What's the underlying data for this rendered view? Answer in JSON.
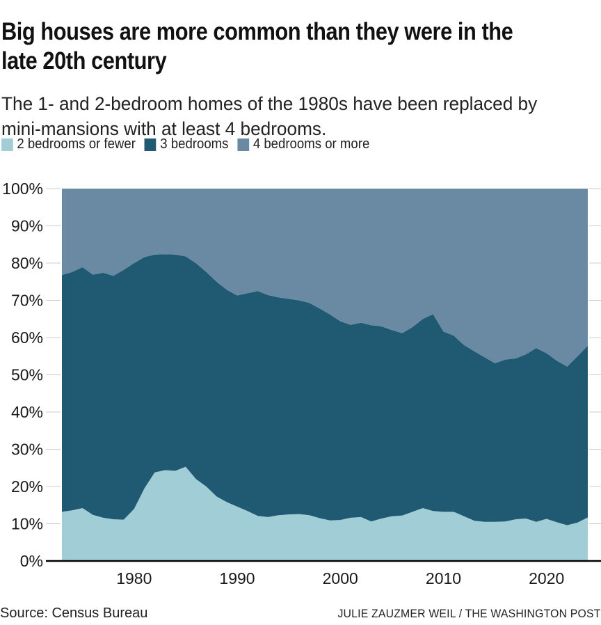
{
  "header": {
    "title_line1": "Big houses are more common than they were in the",
    "title_line2": "late 20th century",
    "subtitle_line1": "The 1- and 2-bedroom homes of the 1980s have been replaced by",
    "subtitle_line2": "mini-mansions with at least 4 bedrooms."
  },
  "footer": {
    "source": "Source: Census Bureau",
    "credit": "JULIE ZAUZMER WEIL / THE WASHINGTON POST"
  },
  "colors": {
    "axis_line": "#000000",
    "tick": "#cccccc",
    "label_text": "#1a1a1a"
  },
  "chart_data": {
    "type": "area",
    "stacked": true,
    "unit": "percent of homes",
    "title": "Big houses are more common than they were in the late 20th century",
    "xlabel": "",
    "ylabel": "",
    "ylim": [
      0,
      100
    ],
    "grid": false,
    "legend_position": "top",
    "y_ticks": [
      "0%",
      "10%",
      "20%",
      "30%",
      "40%",
      "50%",
      "60%",
      "70%",
      "80%",
      "90%",
      "100%"
    ],
    "x_ticks": [
      "1980",
      "1990",
      "2000",
      "2010",
      "2020"
    ],
    "x": [
      1973,
      1974,
      1975,
      1976,
      1977,
      1978,
      1979,
      1980,
      1981,
      1982,
      1983,
      1984,
      1985,
      1986,
      1987,
      1988,
      1989,
      1990,
      1991,
      1992,
      1993,
      1994,
      1995,
      1996,
      1997,
      1998,
      1999,
      2000,
      2001,
      2002,
      2003,
      2004,
      2005,
      2006,
      2007,
      2008,
      2009,
      2010,
      2011,
      2012,
      2013,
      2014,
      2015,
      2016,
      2017,
      2018,
      2019,
      2020,
      2021,
      2022,
      2023,
      2024
    ],
    "series": [
      {
        "name": "2 bedrooms or fewer",
        "color": "#a1ced6",
        "values": [
          13.2,
          13.6,
          14.2,
          12.4,
          11.6,
          11.2,
          11.1,
          14.0,
          19.5,
          23.8,
          24.4,
          24.2,
          25.3,
          22.0,
          20.0,
          17.3,
          15.8,
          14.6,
          13.4,
          12.1,
          11.8,
          12.3,
          12.5,
          12.6,
          12.3,
          11.5,
          10.9,
          11.0,
          11.6,
          11.8,
          10.6,
          11.4,
          12.0,
          12.2,
          13.2,
          14.2,
          13.4,
          13.2,
          13.2,
          12.0,
          10.8,
          10.5,
          10.5,
          10.6,
          11.2,
          11.4,
          10.5,
          11.3,
          10.4,
          9.6,
          10.3,
          11.7
        ]
      },
      {
        "name": "3 bedrooms",
        "color": "#1f5a72",
        "values": [
          63.6,
          64.0,
          64.7,
          64.5,
          65.8,
          65.4,
          67.1,
          66.0,
          62.1,
          58.5,
          58.0,
          58.1,
          56.5,
          58.0,
          57.6,
          57.7,
          57.0,
          56.7,
          58.5,
          60.4,
          59.6,
          58.5,
          57.9,
          57.4,
          57.0,
          56.3,
          55.3,
          53.4,
          51.8,
          52.2,
          52.7,
          51.6,
          50.0,
          49.0,
          49.6,
          50.8,
          52.9,
          48.4,
          47.3,
          46.0,
          45.5,
          44.2,
          42.6,
          43.5,
          43.2,
          44.1,
          46.7,
          44.5,
          43.4,
          42.6,
          44.7,
          46.1
        ]
      },
      {
        "name": "4 bedrooms or more",
        "color": "#6a8aa4",
        "values": [
          23.2,
          22.4,
          21.1,
          23.1,
          22.6,
          23.4,
          21.8,
          20.0,
          18.4,
          17.7,
          17.6,
          17.7,
          18.2,
          20.0,
          22.4,
          25.0,
          27.2,
          28.7,
          28.1,
          27.5,
          28.6,
          29.2,
          29.6,
          30.0,
          30.7,
          32.2,
          33.8,
          35.6,
          36.6,
          36.0,
          36.7,
          37.0,
          38.0,
          38.8,
          37.2,
          35.0,
          33.7,
          38.4,
          39.5,
          42.0,
          43.7,
          45.3,
          46.9,
          45.9,
          45.6,
          44.5,
          42.8,
          44.2,
          46.2,
          47.8,
          45.0,
          42.2
        ]
      }
    ]
  }
}
